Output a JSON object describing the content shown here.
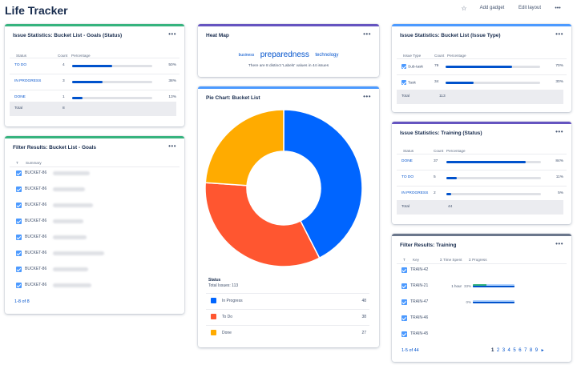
{
  "header": {
    "title": "Life Tracker",
    "star_icon": "star-icon",
    "add_gadget": "Add gadget",
    "edit_layout": "Edit layout",
    "more": "•••"
  },
  "colors": {
    "blue": "#0065ff",
    "red": "#ff5630",
    "yellow": "#ffab00",
    "teal": "#36b37e",
    "purple": "#6554c0",
    "grey": "#6b778c"
  },
  "goals_stats": {
    "title": "Issue Statistics: Bucket List - Goals (Status)",
    "menu": "•••",
    "headers": [
      "Status",
      "Count",
      "Percentage"
    ],
    "rows": [
      {
        "label": "TO DO",
        "count": "4",
        "pct": "50%",
        "frac": 0.5
      },
      {
        "label": "IN PROGRESS",
        "count": "3",
        "pct": "38%",
        "frac": 0.38
      },
      {
        "label": "DONE",
        "count": "1",
        "pct": "13%",
        "frac": 0.13
      }
    ],
    "total_label": "Total",
    "total_value": "8"
  },
  "filter_goals": {
    "title": "Filter Results: Bucket List - Goals",
    "menu": "•••",
    "headers": [
      "T",
      "Summary"
    ],
    "rows": [
      {
        "key": "BUCKET-86"
      },
      {
        "key": "BUCKET-86"
      },
      {
        "key": "BUCKET-86"
      },
      {
        "key": "BUCKET-86"
      },
      {
        "key": "BUCKET-86"
      },
      {
        "key": "BUCKET-86"
      },
      {
        "key": "BUCKET-86"
      },
      {
        "key": "BUCKET-86"
      }
    ],
    "pager": "1-8 of 8"
  },
  "heat_map": {
    "title": "Heat Map",
    "menu": "•••",
    "words": [
      "business",
      "preparedness",
      "technology"
    ],
    "note": "There are 8 distinct 'Labels' values in 44 issues"
  },
  "pie": {
    "title": "Pie Chart: Bucket List",
    "menu": "•••",
    "status_label": "Status",
    "total_label": "Total Issues: 113",
    "legend": [
      {
        "name": "In Progress",
        "value": "48"
      },
      {
        "name": "To Do",
        "value": "38"
      },
      {
        "name": "Done",
        "value": "27"
      }
    ]
  },
  "chart_data": {
    "type": "pie",
    "title": "Pie Chart: Bucket List",
    "categories": [
      "In Progress",
      "To Do",
      "Done"
    ],
    "values": [
      48,
      38,
      27
    ],
    "colors": [
      "#0065ff",
      "#ff5630",
      "#ffab00"
    ],
    "donut": true,
    "legend": "bottom"
  },
  "type_stats": {
    "title": "Issue Statistics: Bucket List (Issue Type)",
    "menu": "•••",
    "headers": [
      "Issue Type",
      "Count",
      "Percentage"
    ],
    "rows": [
      {
        "label": "Sub-task",
        "count": "79",
        "pct": "70%",
        "frac": 0.7
      },
      {
        "label": "Task",
        "count": "34",
        "pct": "30%",
        "frac": 0.3
      }
    ],
    "total_label": "Total",
    "total_value": "113"
  },
  "training_stats": {
    "title": "Issue Statistics: Training (Status)",
    "menu": "•••",
    "headers": [
      "Status",
      "Count",
      "Percentage"
    ],
    "rows": [
      {
        "label": "DONE",
        "count": "37",
        "pct": "84%",
        "frac": 0.84
      },
      {
        "label": "TO DO",
        "count": "5",
        "pct": "11%",
        "frac": 0.11
      },
      {
        "label": "IN PROGRESS",
        "count": "2",
        "pct": "5%",
        "frac": 0.05
      }
    ],
    "total_label": "Total",
    "total_value": "44"
  },
  "filter_training": {
    "title": "Filter Results: Training",
    "menu": "•••",
    "headers": [
      "T",
      "Key",
      "Σ Time Spent",
      "Σ Progress"
    ],
    "rows": [
      {
        "key": "TRAIN-42",
        "time": "",
        "progress": "",
        "frac": 0
      },
      {
        "key": "TRAIN-21",
        "time": "1 hour",
        "progress": "33%",
        "frac": 0.33
      },
      {
        "key": "TRAIN-47",
        "time": "",
        "progress": "0%",
        "frac": 0
      },
      {
        "key": "TRAIN-46",
        "time": "",
        "progress": "",
        "frac": 0
      },
      {
        "key": "TRAIN-45",
        "time": "",
        "progress": "",
        "frac": 0
      }
    ],
    "pager": "1-5 of 44",
    "pages": [
      "1",
      "2",
      "3",
      "4",
      "5",
      "6",
      "7",
      "8",
      "9"
    ],
    "next": "►"
  }
}
